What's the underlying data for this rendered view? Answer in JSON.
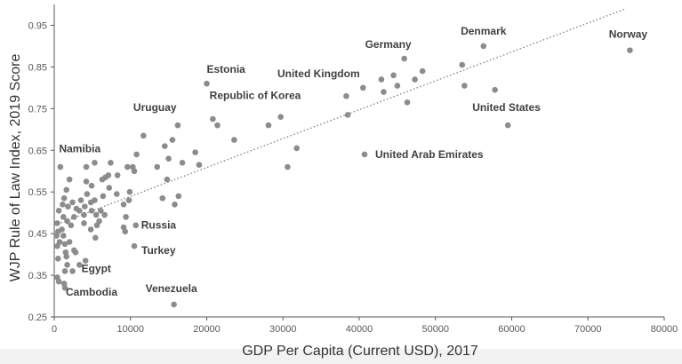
{
  "chart_data": {
    "type": "scatter",
    "xlabel": "GDP Per Capita (Current USD), 2017",
    "ylabel": "WJP Rule of Law Index, 2019 Score",
    "xlim": [
      0,
      80000
    ],
    "ylim": [
      0.25,
      1.0
    ],
    "xticks": [
      0,
      10000,
      20000,
      30000,
      40000,
      50000,
      60000,
      70000,
      80000
    ],
    "yticks": [
      0.25,
      0.35,
      0.45,
      0.55,
      0.65,
      0.75,
      0.85,
      0.95
    ],
    "grid": false,
    "legend": "none",
    "marker_color": "#8c8c8c",
    "trendline": {
      "style": "dotted",
      "color": "#7f7f7f",
      "x": [
        0,
        75000
      ],
      "y": [
        0.47,
        0.99
      ]
    },
    "labeled_points": [
      {
        "label": "Norway",
        "x": 75500,
        "y": 0.89
      },
      {
        "label": "Denmark",
        "x": 56300,
        "y": 0.9
      },
      {
        "label": "Germany",
        "x": 45900,
        "y": 0.87
      },
      {
        "label": "United Kingdom",
        "x": 40500,
        "y": 0.8
      },
      {
        "label": "Estonia",
        "x": 20000,
        "y": 0.81
      },
      {
        "label": "Republic of Korea",
        "x": 29700,
        "y": 0.73
      },
      {
        "label": "United States",
        "x": 59500,
        "y": 0.71
      },
      {
        "label": "Uruguay",
        "x": 16200,
        "y": 0.71
      },
      {
        "label": "United Arab Emirates",
        "x": 40700,
        "y": 0.64
      },
      {
        "label": "Namibia",
        "x": 5300,
        "y": 0.62
      },
      {
        "label": "Russia",
        "x": 10700,
        "y": 0.47
      },
      {
        "label": "Turkey",
        "x": 10500,
        "y": 0.42
      },
      {
        "label": "Egypt",
        "x": 2400,
        "y": 0.36
      },
      {
        "label": "Cambodia",
        "x": 1400,
        "y": 0.32
      },
      {
        "label": "Venezuela",
        "x": 15700,
        "y": 0.28
      }
    ],
    "points": [
      [
        53500,
        0.855
      ],
      [
        57800,
        0.795
      ],
      [
        53800,
        0.805
      ],
      [
        48300,
        0.84
      ],
      [
        47300,
        0.82
      ],
      [
        44500,
        0.83
      ],
      [
        45000,
        0.805
      ],
      [
        42900,
        0.82
      ],
      [
        43200,
        0.79
      ],
      [
        46300,
        0.765
      ],
      [
        38300,
        0.78
      ],
      [
        38500,
        0.735
      ],
      [
        31800,
        0.655
      ],
      [
        30600,
        0.61
      ],
      [
        28100,
        0.71
      ],
      [
        23600,
        0.675
      ],
      [
        20800,
        0.725
      ],
      [
        21400,
        0.71
      ],
      [
        18500,
        0.645
      ],
      [
        19000,
        0.615
      ],
      [
        16800,
        0.62
      ],
      [
        15500,
        0.675
      ],
      [
        14500,
        0.66
      ],
      [
        15000,
        0.63
      ],
      [
        13500,
        0.61
      ],
      [
        14200,
        0.535
      ],
      [
        15800,
        0.52
      ],
      [
        16300,
        0.54
      ],
      [
        14800,
        0.58
      ],
      [
        11700,
        0.685
      ],
      [
        10800,
        0.64
      ],
      [
        10300,
        0.61
      ],
      [
        9600,
        0.61
      ],
      [
        10500,
        0.6
      ],
      [
        9900,
        0.55
      ],
      [
        9800,
        0.53
      ],
      [
        8200,
        0.545
      ],
      [
        9100,
        0.52
      ],
      [
        9400,
        0.49
      ],
      [
        9100,
        0.465
      ],
      [
        9300,
        0.455
      ],
      [
        8300,
        0.59
      ],
      [
        7400,
        0.62
      ],
      [
        7100,
        0.59
      ],
      [
        7200,
        0.56
      ],
      [
        6700,
        0.585
      ],
      [
        6300,
        0.58
      ],
      [
        6400,
        0.54
      ],
      [
        6100,
        0.505
      ],
      [
        6600,
        0.495
      ],
      [
        5900,
        0.48
      ],
      [
        5600,
        0.47
      ],
      [
        5400,
        0.44
      ],
      [
        4800,
        0.46
      ],
      [
        4900,
        0.505
      ],
      [
        4800,
        0.525
      ],
      [
        4900,
        0.565
      ],
      [
        5300,
        0.53
      ],
      [
        5500,
        0.495
      ],
      [
        4200,
        0.61
      ],
      [
        4200,
        0.575
      ],
      [
        4300,
        0.545
      ],
      [
        4000,
        0.515
      ],
      [
        3900,
        0.495
      ],
      [
        3900,
        0.475
      ],
      [
        4100,
        0.385
      ],
      [
        3500,
        0.53
      ],
      [
        3300,
        0.505
      ],
      [
        2900,
        0.51
      ],
      [
        2600,
        0.49
      ],
      [
        2400,
        0.525
      ],
      [
        2200,
        0.47
      ],
      [
        2000,
        0.43
      ],
      [
        2000,
        0.58
      ],
      [
        1800,
        0.515
      ],
      [
        1600,
        0.555
      ],
      [
        1700,
        0.48
      ],
      [
        1300,
        0.535
      ],
      [
        1100,
        0.52
      ],
      [
        1200,
        0.49
      ],
      [
        1000,
        0.46
      ],
      [
        1200,
        0.445
      ],
      [
        1400,
        0.425
      ],
      [
        1500,
        0.405
      ],
      [
        1600,
        0.395
      ],
      [
        1400,
        0.36
      ],
      [
        1300,
        0.33
      ],
      [
        1700,
        0.375
      ],
      [
        800,
        0.61
      ],
      [
        600,
        0.505
      ],
      [
        400,
        0.475
      ],
      [
        500,
        0.455
      ],
      [
        300,
        0.445
      ],
      [
        700,
        0.43
      ],
      [
        400,
        0.42
      ],
      [
        500,
        0.39
      ],
      [
        400,
        0.345
      ],
      [
        600,
        0.335
      ],
      [
        2800,
        0.405
      ],
      [
        3300,
        0.375
      ],
      [
        2600,
        0.41
      ]
    ]
  }
}
